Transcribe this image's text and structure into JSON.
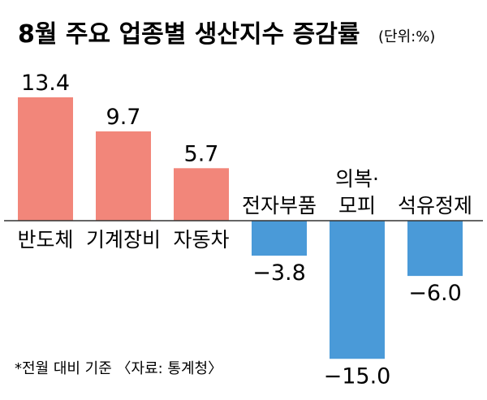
{
  "chart_data": {
    "type": "bar",
    "title": "8월 주요 업종별 생산지수 증감률",
    "unit": "(단위:%)",
    "categories": [
      [
        "반도체"
      ],
      [
        "기계장비"
      ],
      [
        "자동차"
      ],
      [
        "전자부품"
      ],
      [
        "의복·",
        "모피"
      ],
      [
        "석유정제"
      ]
    ],
    "values": [
      13.4,
      9.7,
      5.7,
      -3.8,
      -15.0,
      -6.0
    ],
    "value_labels": [
      "13.4",
      "9.7",
      "5.7",
      "−3.8",
      "−15.0",
      "−6.0"
    ],
    "ylim": [
      -15.5,
      13.5
    ],
    "colors": {
      "positive": "#f2867a",
      "negative": "#4a9ad8",
      "axis": "#333333"
    },
    "footnote": "*전월 대비 기준 〈자료: 통계청〉",
    "xlabel": "",
    "ylabel": ""
  }
}
